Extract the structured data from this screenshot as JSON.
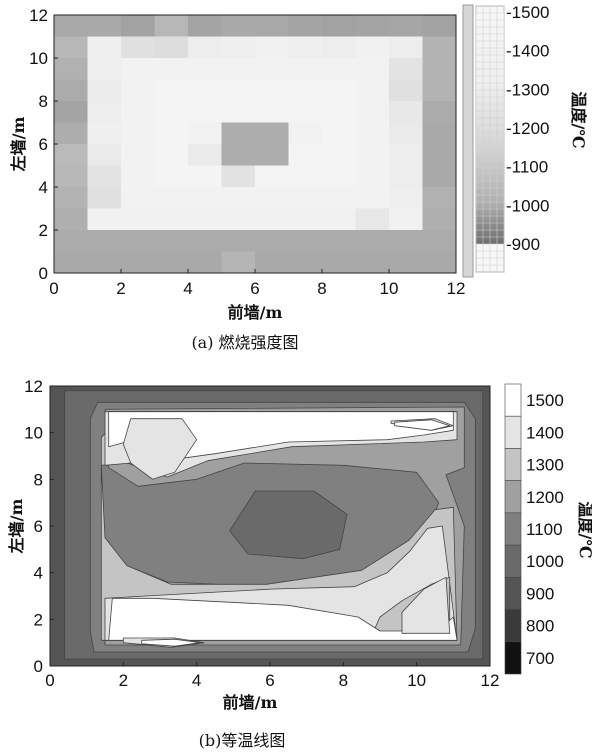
{
  "chart_data": [
    {
      "type": "heatmap",
      "caption": "(a) 燃烧强度图",
      "xlabel": "前墙/m",
      "ylabel": "左墙/m",
      "xlim": [
        0,
        12
      ],
      "ylim": [
        0,
        12
      ],
      "xticks": [
        0,
        2,
        4,
        6,
        8,
        10,
        12
      ],
      "yticks": [
        0,
        2,
        4,
        6,
        8,
        10,
        12
      ],
      "colorbar": {
        "label": "温度/℃",
        "range": [
          900,
          1500
        ],
        "ticks": [
          900,
          1000,
          1100,
          1200,
          1300,
          1400,
          1500
        ],
        "tick_labels": [
          "-900",
          "-1000",
          "-1100",
          "-1200",
          "-1300",
          "-1400",
          "-1500"
        ],
        "colors": [
          "#7a7a7a",
          "#cfcfcf",
          "#f4f4f4"
        ]
      },
      "grid_rows_top_to_bottom_celsius": [
        [
          1080,
          1080,
          1050,
          1150,
          1060,
          1080,
          1080,
          1060,
          1050,
          1060,
          1070,
          1050
        ],
        [
          1150,
          1470,
          1380,
          1360,
          1460,
          1470,
          1480,
          1470,
          1460,
          1480,
          1460,
          1130
        ],
        [
          1120,
          1470,
          1490,
          1490,
          1490,
          1490,
          1490,
          1490,
          1490,
          1490,
          1400,
          1130
        ],
        [
          1090,
          1450,
          1490,
          1500,
          1500,
          1500,
          1500,
          1500,
          1500,
          1490,
          1380,
          1130
        ],
        [
          1060,
          1460,
          1490,
          1500,
          1500,
          1500,
          1500,
          1500,
          1500,
          1490,
          1430,
          1090
        ],
        [
          1100,
          1470,
          1490,
          1500,
          1490,
          1100,
          1100,
          1490,
          1500,
          1490,
          1440,
          1080
        ],
        [
          1170,
          1440,
          1490,
          1500,
          1440,
          1100,
          1100,
          1500,
          1500,
          1490,
          1460,
          1080
        ],
        [
          1160,
          1400,
          1490,
          1500,
          1500,
          1390,
          1500,
          1500,
          1500,
          1490,
          1460,
          1080
        ],
        [
          1130,
          1380,
          1490,
          1490,
          1490,
          1490,
          1490,
          1490,
          1490,
          1490,
          1470,
          1120
        ],
        [
          1110,
          1480,
          1480,
          1480,
          1480,
          1480,
          1480,
          1480,
          1480,
          1420,
          1480,
          1110
        ],
        [
          1090,
          1090,
          1090,
          1090,
          1090,
          1090,
          1090,
          1090,
          1090,
          1090,
          1090,
          1090
        ],
        [
          1080,
          1080,
          1080,
          1080,
          1080,
          1140,
          1080,
          1080,
          1080,
          1080,
          1080,
          1080
        ]
      ]
    },
    {
      "type": "contour",
      "caption": "(b)等温线图",
      "xlabel": "前墙/m",
      "ylabel": "左墙/m",
      "xlim": [
        0,
        12
      ],
      "ylim": [
        0,
        12
      ],
      "xticks": [
        0,
        2,
        4,
        6,
        8,
        10,
        12
      ],
      "yticks": [
        0,
        2,
        4,
        6,
        8,
        10,
        12
      ],
      "colorbar": {
        "label": "温度/℃",
        "levels": [
          700,
          800,
          900,
          1000,
          1100,
          1200,
          1300,
          1400,
          1500
        ],
        "colors": [
          "#111111",
          "#3a3a3a",
          "#555555",
          "#6a6a6a",
          "#808080",
          "#a0a0a0",
          "#c4c4c4",
          "#e4e4e4",
          "#ffffff"
        ]
      },
      "regions": [
        {
          "level": 1000,
          "description": "outer ring",
          "polygon": [
            [
              0.4,
              0.3
            ],
            [
              11.8,
              0.3
            ],
            [
              11.8,
              11.8
            ],
            [
              0.4,
              11.8
            ]
          ]
        },
        {
          "level": 1100,
          "polygon": [
            [
              1.2,
              0.6
            ],
            [
              11.4,
              0.6
            ],
            [
              11.6,
              1.6
            ],
            [
              11.6,
              10.6
            ],
            [
              11.3,
              11.3
            ],
            [
              1.3,
              11.3
            ],
            [
              1.1,
              10.6
            ],
            [
              1.1,
              1.5
            ]
          ]
        },
        {
          "level": 1200,
          "polygon": [
            [
              1.5,
              0.9
            ],
            [
              11.2,
              0.9
            ],
            [
              11.3,
              6.0
            ],
            [
              10.8,
              8.2
            ],
            [
              11.3,
              8.5
            ],
            [
              11.3,
              11.1
            ],
            [
              1.5,
              11.0
            ],
            [
              1.6,
              8.5
            ],
            [
              2.4,
              7.7
            ],
            [
              4.0,
              8.0
            ],
            [
              5.3,
              8.7
            ],
            [
              8.0,
              8.6
            ],
            [
              10.0,
              8.3
            ],
            [
              10.6,
              7.0
            ],
            [
              10.3,
              5.7
            ],
            [
              9.2,
              4.4
            ],
            [
              8.3,
              3.4
            ],
            [
              6.0,
              3.4
            ],
            [
              3.2,
              3.6
            ],
            [
              2.1,
              4.3
            ],
            [
              1.5,
              5.2
            ]
          ]
        },
        {
          "level": 1300,
          "polygon": [
            [
              1.4,
              1.1
            ],
            [
              11.1,
              1.1
            ],
            [
              11.0,
              6.8
            ],
            [
              10.5,
              6.7
            ],
            [
              9.8,
              5.4
            ],
            [
              8.5,
              4.1
            ],
            [
              5.9,
              3.5
            ],
            [
              3.3,
              3.5
            ],
            [
              2.1,
              4.3
            ],
            [
              1.5,
              5.5
            ],
            [
              1.4,
              8.6
            ],
            [
              2.1,
              8.7
            ],
            [
              3.0,
              8.2
            ],
            [
              4.3,
              8.9
            ],
            [
              6.5,
              9.5
            ],
            [
              10.0,
              9.7
            ],
            [
              11.0,
              9.8
            ],
            [
              11.1,
              10.9
            ],
            [
              2.1,
              10.9
            ],
            [
              1.4,
              9.8
            ]
          ]
        },
        {
          "level": 1400,
          "polygon": [
            [
              1.5,
              1.1
            ],
            [
              11.1,
              1.1
            ],
            [
              10.7,
              6.0
            ],
            [
              10.3,
              5.9
            ],
            [
              9.8,
              4.9
            ],
            [
              9.2,
              4.0
            ],
            [
              8.3,
              3.4
            ],
            [
              6.1,
              3.3
            ],
            [
              2.6,
              3.0
            ],
            [
              1.5,
              2.9
            ]
          ]
        },
        {
          "level": 1400,
          "polygon": [
            [
              1.5,
              8.6
            ],
            [
              2.2,
              8.7
            ],
            [
              3.2,
              8.1
            ],
            [
              4.3,
              8.8
            ],
            [
              6.6,
              9.4
            ],
            [
              10.2,
              9.6
            ],
            [
              11.1,
              9.7
            ],
            [
              11.1,
              10.9
            ],
            [
              1.5,
              10.9
            ]
          ]
        },
        {
          "level": 1300,
          "polygon": [
            [
              8.8,
              1.4
            ],
            [
              10.0,
              1.4
            ],
            [
              10.9,
              1.4
            ],
            [
              10.9,
              3.8
            ],
            [
              10.4,
              3.5
            ],
            [
              9.6,
              2.8
            ],
            [
              9.0,
              2.1
            ]
          ]
        },
        {
          "level": 1300,
          "polygon": [
            [
              2.1,
              9.8
            ],
            [
              2.2,
              10.6
            ],
            [
              3.5,
              10.6
            ],
            [
              3.9,
              9.8
            ],
            [
              3.4,
              8.6
            ],
            [
              2.9,
              8.1
            ],
            [
              2.3,
              8.7
            ]
          ]
        },
        {
          "level": 1500,
          "polygon": [
            [
              1.6,
              1.1
            ],
            [
              11.1,
              1.1
            ],
            [
              11.0,
              2.1
            ],
            [
              10.6,
              1.5
            ],
            [
              9.0,
              1.5
            ],
            [
              8.4,
              2.1
            ],
            [
              6.5,
              2.6
            ],
            [
              2.8,
              2.9
            ],
            [
              1.7,
              2.9
            ]
          ]
        },
        {
          "level": 1500,
          "polygon": [
            [
              1.6,
              9.4
            ],
            [
              2.3,
              9.7
            ],
            [
              3.0,
              9.6
            ],
            [
              3.6,
              8.9
            ],
            [
              4.5,
              9.1
            ],
            [
              6.5,
              9.6
            ],
            [
              9.2,
              9.7
            ],
            [
              10.2,
              9.9
            ],
            [
              11.0,
              10.1
            ],
            [
              11.0,
              10.9
            ],
            [
              1.6,
              10.9
            ]
          ]
        },
        {
          "level": 1400,
          "polygon": [
            [
              2.0,
              1.0
            ],
            [
              3.3,
              0.8
            ],
            [
              4.2,
              1.0
            ],
            [
              3.4,
              1.2
            ],
            [
              2.0,
              1.2
            ]
          ]
        },
        {
          "level": 1400,
          "polygon": [
            [
              9.3,
              10.4
            ],
            [
              10.4,
              10.1
            ],
            [
              11.0,
              10.3
            ],
            [
              10.5,
              10.6
            ],
            [
              9.3,
              10.5
            ]
          ]
        },
        {
          "level": 1400,
          "polygon": [
            [
              2.2,
              8.7
            ],
            [
              2.0,
              9.5
            ],
            [
              2.2,
              10.6
            ],
            [
              3.6,
              10.6
            ],
            [
              4.0,
              9.7
            ],
            [
              3.4,
              8.3
            ],
            [
              2.8,
              8.0
            ]
          ]
        },
        {
          "level": 1400,
          "polygon": [
            [
              9.6,
              1.4
            ],
            [
              10.9,
              1.4
            ],
            [
              10.8,
              3.8
            ],
            [
              10.2,
              3.3
            ],
            [
              9.6,
              2.3
            ]
          ]
        },
        {
          "level": 1500,
          "polygon": [
            [
              2.5,
              0.95
            ],
            [
              3.4,
              0.85
            ],
            [
              4.1,
              1.0
            ],
            [
              3.4,
              1.15
            ],
            [
              2.5,
              1.1
            ]
          ]
        },
        {
          "level": 1500,
          "polygon": [
            [
              9.4,
              10.3
            ],
            [
              10.4,
              10.1
            ],
            [
              10.9,
              10.3
            ],
            [
              10.4,
              10.55
            ],
            [
              9.4,
              10.45
            ]
          ]
        },
        {
          "level": 1000,
          "polygon": [
            [
              4.9,
              5.8
            ],
            [
              5.6,
              7.5
            ],
            [
              7.2,
              7.5
            ],
            [
              8.1,
              6.5
            ],
            [
              7.9,
              5.0
            ],
            [
              6.9,
              4.6
            ],
            [
              5.4,
              4.8
            ]
          ]
        }
      ]
    }
  ]
}
